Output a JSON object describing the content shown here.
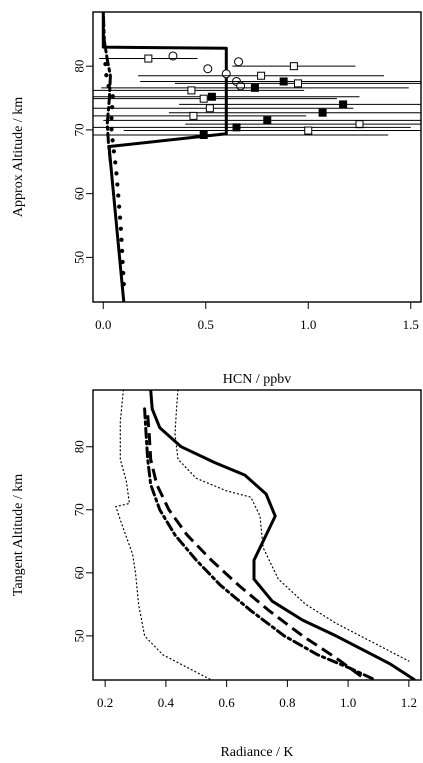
{
  "chart_data": [
    {
      "type": "line",
      "xlabel": "HCN / ppbv",
      "ylabel": "Approx Altitude / km",
      "xlim": [
        -0.05,
        1.55
      ],
      "ylim": [
        43,
        88.5
      ],
      "xticks": [
        0.0,
        0.5,
        1.0,
        1.5
      ],
      "xtick_labels": [
        "0.0",
        "0.5",
        "1.0",
        "1.5"
      ],
      "yticks": [
        50,
        60,
        70,
        80
      ],
      "ytick_labels": [
        "50",
        "60",
        "70",
        "80"
      ],
      "grid": false,
      "series": [
        {
          "style": "solid",
          "x": [
            0.1,
            0.03,
            0.03,
            0.6,
            0.6,
            0.0,
            0.0
          ],
          "y": [
            43,
            66.8,
            67.4,
            69.4,
            82.8,
            83.0,
            88.5
          ]
        },
        {
          "style": "dash-dot",
          "x": [
            0.035,
            0.025,
            0.02,
            0.03,
            0.035,
            0.02,
            0.005,
            0.0
          ],
          "y": [
            65,
            68,
            71,
            75,
            78.5,
            81,
            84,
            88.5
          ]
        },
        {
          "style": "dots",
          "x": [
            0.1,
            0.095,
            0.09,
            0.085,
            0.08,
            0.075,
            0.07,
            0.065,
            0.06,
            0.055,
            0.05,
            0.045,
            0.04,
            0.04,
            0.04,
            0.045,
            0.05,
            0.035,
            0.02,
            0.015,
            0.01
          ],
          "y": [
            45.8,
            49.2,
            52.3,
            55,
            57,
            59,
            61,
            63,
            64.5,
            66,
            67,
            68.5,
            70,
            71.5,
            72.8,
            74,
            75,
            76.2,
            77.4,
            78.6,
            80.5
          ]
        }
      ],
      "points": [
        {
          "marker": "open-circle",
          "x": 0.34,
          "y": 81.6,
          "xerr": 0
        },
        {
          "marker": "open-circle",
          "x": 0.51,
          "y": 79.6,
          "xerr": 0
        },
        {
          "marker": "open-circle",
          "x": 0.66,
          "y": 80.7,
          "xerr": 0
        },
        {
          "marker": "open-circle",
          "x": 0.6,
          "y": 78.8,
          "xerr": 0
        },
        {
          "marker": "open-circle",
          "x": 0.65,
          "y": 77.6,
          "xerr": 0
        },
        {
          "marker": "open-circle",
          "x": 0.67,
          "y": 76.9,
          "xerr": 0
        },
        {
          "marker": "open-square",
          "x": 0.22,
          "y": 81.2,
          "xerr": 0.24
        },
        {
          "marker": "open-square",
          "x": 0.93,
          "y": 80.0,
          "xerr": 0.3
        },
        {
          "marker": "open-square",
          "x": 0.77,
          "y": 78.5,
          "xerr": 0.6
        },
        {
          "marker": "filled-square",
          "x": 0.88,
          "y": 77.6,
          "xerr": 0.7
        },
        {
          "marker": "open-square",
          "x": 0.95,
          "y": 77.3,
          "xerr": 0.6
        },
        {
          "marker": "filled-square",
          "x": 0.74,
          "y": 76.6,
          "xerr": 0.75
        },
        {
          "marker": "open-square",
          "x": 0.43,
          "y": 76.2,
          "xerr": 0.55
        },
        {
          "marker": "filled-square",
          "x": 0.53,
          "y": 75.2,
          "xerr": 0.72
        },
        {
          "marker": "open-square",
          "x": 0.49,
          "y": 74.9,
          "xerr": 0.65
        },
        {
          "marker": "filled-square",
          "x": 1.17,
          "y": 74.0,
          "xerr": 0.8
        },
        {
          "marker": "open-square",
          "x": 0.52,
          "y": 73.4,
          "xerr": 0.7
        },
        {
          "marker": "filled-square",
          "x": 1.07,
          "y": 72.7,
          "xerr": 0.75
        },
        {
          "marker": "open-square",
          "x": 0.44,
          "y": 72.2,
          "xerr": 0.55
        },
        {
          "marker": "filled-square",
          "x": 0.8,
          "y": 71.5,
          "xerr": 0.8
        },
        {
          "marker": "open-square",
          "x": 1.25,
          "y": 70.9,
          "xerr": 0.85
        },
        {
          "marker": "filled-square",
          "x": 0.65,
          "y": 70.4,
          "xerr": 0.85
        },
        {
          "marker": "open-square",
          "x": 1.0,
          "y": 69.9,
          "xerr": 0.9
        },
        {
          "marker": "filled-square",
          "x": 0.49,
          "y": 69.2,
          "xerr": 0.9
        }
      ]
    },
    {
      "type": "line",
      "xlabel": "Radiance / K",
      "ylabel": "Tangent Altitude / km",
      "xlim": [
        0.16,
        1.24
      ],
      "ylim": [
        43,
        89
      ],
      "xticks": [
        0.2,
        0.4,
        0.6,
        0.8,
        1.0,
        1.2
      ],
      "xtick_labels": [
        "0.2",
        "0.4",
        "0.6",
        "0.8",
        "1.0",
        "1.2"
      ],
      "yticks": [
        50,
        60,
        70,
        80
      ],
      "ytick_labels": [
        "50",
        "60",
        "70",
        "80"
      ],
      "grid": false,
      "series": [
        {
          "style": "solid",
          "x": [
            0.35,
            0.355,
            0.38,
            0.45,
            0.56,
            0.66,
            0.73,
            0.76,
            0.72,
            0.69,
            0.69,
            0.75,
            0.85,
            0.96,
            1.06,
            1.14,
            1.22
          ],
          "y": [
            89,
            86,
            83,
            80,
            77.5,
            75.5,
            72.5,
            69,
            65,
            62,
            59,
            55.5,
            52.5,
            50,
            47.5,
            45.5,
            43
          ]
        },
        {
          "style": "dashed",
          "x": [
            0.34,
            0.345,
            0.35,
            0.37,
            0.41,
            0.47,
            0.55,
            0.64,
            0.74,
            0.85,
            0.96,
            1.06
          ],
          "y": [
            85,
            82,
            78,
            74,
            70,
            66,
            62,
            58,
            54,
            50,
            46.5,
            43
          ]
        },
        {
          "style": "dash-dot",
          "x": [
            0.33,
            0.335,
            0.34,
            0.35,
            0.38,
            0.43,
            0.5,
            0.58,
            0.68,
            0.79,
            0.9,
            1.0,
            1.09
          ],
          "y": [
            86,
            82,
            78,
            74,
            70,
            66,
            62,
            58,
            54,
            50,
            47,
            45,
            43
          ]
        },
        {
          "style": "dotted",
          "x": [
            0.26,
            0.25,
            0.25,
            0.27,
            0.28,
            0.235,
            0.26,
            0.29,
            0.3,
            0.31,
            0.33,
            0.39,
            0.47,
            0.55
          ],
          "y": [
            89,
            84,
            78,
            74.5,
            71,
            70.5,
            67,
            63,
            60,
            55,
            50,
            47,
            45,
            43
          ]
        },
        {
          "style": "dotted",
          "x": [
            0.44,
            0.435,
            0.43,
            0.44,
            0.5,
            0.6,
            0.68,
            0.71,
            0.72,
            0.77,
            0.86,
            0.96,
            1.06,
            1.12,
            1.2
          ],
          "y": [
            89,
            86,
            82,
            78,
            75,
            73,
            72,
            69,
            64,
            59,
            55,
            52,
            49.5,
            48,
            46
          ]
        }
      ]
    }
  ]
}
